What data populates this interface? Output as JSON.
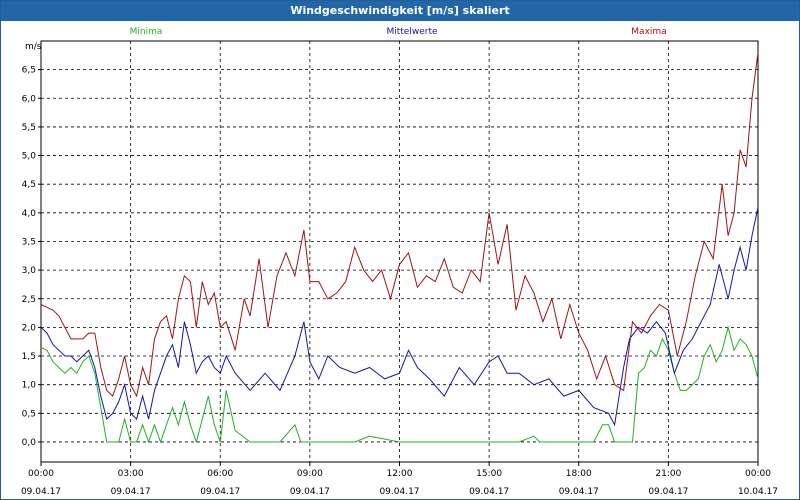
{
  "window": {
    "title": "Windgeschwindigkeit [m/s] skaliert"
  },
  "colors": {
    "min": "#22b022",
    "avg": "#1414b4",
    "max": "#a01414",
    "grid": "#000000",
    "title_bar": "#2266a8"
  },
  "chart_data": {
    "type": "line",
    "ylabel": "m/s",
    "ylim": [
      -0.35,
      7.0
    ],
    "yticks": [
      "0,0",
      "0,5",
      "1,0",
      "1,5",
      "2,0",
      "2,5",
      "3,0",
      "3,5",
      "4,0",
      "4,5",
      "5,0",
      "5,5",
      "6,0",
      "6,5"
    ],
    "yticks_values": [
      0,
      0.5,
      1,
      1.5,
      2,
      2.5,
      3,
      3.5,
      4,
      4.5,
      5,
      5.5,
      6,
      6.5
    ],
    "xlim": [
      0,
      24
    ],
    "xticks": [
      {
        "time": "00:00",
        "date": "09.04.17"
      },
      {
        "time": "03:00",
        "date": "09.04.17"
      },
      {
        "time": "06:00",
        "date": "09.04.17"
      },
      {
        "time": "09:00",
        "date": "09.04.17"
      },
      {
        "time": "12:00",
        "date": "09.04.17"
      },
      {
        "time": "15:00",
        "date": "09.04.17"
      },
      {
        "time": "18:00",
        "date": "09.04.17"
      },
      {
        "time": "21:00",
        "date": "09.04.17"
      },
      {
        "time": "00:00",
        "date": "10.04.17"
      }
    ],
    "grid": true,
    "series": [
      {
        "name": "Minima",
        "color": "#22b022",
        "x": [
          0,
          0.2,
          0.4,
          0.6,
          0.8,
          1.0,
          1.2,
          1.4,
          1.6,
          1.8,
          2.0,
          2.2,
          2.4,
          2.6,
          2.8,
          3.0,
          3.2,
          3.4,
          3.6,
          3.8,
          4.0,
          4.2,
          4.4,
          4.6,
          4.8,
          5.0,
          5.2,
          5.4,
          5.6,
          5.8,
          6.0,
          6.2,
          6.5,
          7.0,
          8.0,
          8.5,
          8.7,
          9.0,
          9.5,
          10.0,
          10.5,
          11.0,
          12.0,
          13.0,
          14.0,
          15.0,
          16.0,
          16.5,
          16.7,
          17.0,
          18.0,
          18.5,
          18.8,
          19.0,
          19.2,
          19.4,
          19.6,
          19.8,
          20.0,
          20.2,
          20.4,
          20.6,
          20.8,
          21.0,
          21.2,
          21.4,
          21.6,
          21.8,
          22.0,
          22.2,
          22.4,
          22.6,
          22.8,
          23.0,
          23.2,
          23.4,
          23.6,
          23.8,
          24.0
        ],
        "y": [
          1.65,
          1.6,
          1.4,
          1.3,
          1.2,
          1.3,
          1.2,
          1.4,
          1.5,
          1.2,
          0.6,
          0.0,
          0.0,
          0.0,
          0.4,
          0.0,
          0.0,
          0.3,
          0.0,
          0.3,
          0.0,
          0.3,
          0.6,
          0.3,
          0.7,
          0.3,
          0.0,
          0.4,
          0.8,
          0.3,
          0.0,
          0.9,
          0.2,
          0.0,
          0.0,
          0.3,
          0.0,
          0.0,
          0.0,
          0.0,
          0.0,
          0.1,
          0.0,
          0.0,
          0.0,
          0.0,
          0.0,
          0.1,
          0.0,
          0.0,
          0.0,
          0.0,
          0.3,
          0.3,
          0.0,
          0.0,
          0.0,
          0.0,
          1.2,
          1.3,
          1.6,
          1.5,
          1.8,
          1.6,
          1.2,
          0.9,
          0.9,
          1.0,
          1.1,
          1.5,
          1.7,
          1.4,
          1.6,
          2.0,
          1.6,
          1.8,
          1.7,
          1.5,
          1.1
        ]
      },
      {
        "name": "Mittelwerte",
        "color": "#1414b4",
        "x": [
          0,
          0.2,
          0.4,
          0.6,
          0.8,
          1.0,
          1.2,
          1.4,
          1.6,
          1.8,
          2.0,
          2.2,
          2.4,
          2.6,
          2.8,
          3.0,
          3.2,
          3.4,
          3.6,
          3.8,
          4.0,
          4.2,
          4.4,
          4.6,
          4.8,
          5.0,
          5.2,
          5.4,
          5.6,
          5.8,
          6.0,
          6.2,
          6.5,
          7.0,
          7.5,
          8.0,
          8.5,
          8.8,
          9.0,
          9.3,
          9.6,
          10.0,
          10.5,
          11.0,
          11.5,
          12.0,
          12.3,
          12.6,
          13.0,
          13.5,
          14.0,
          14.5,
          15.0,
          15.3,
          15.6,
          16.0,
          16.5,
          17.0,
          17.5,
          18.0,
          18.5,
          19.0,
          19.2,
          19.5,
          19.7,
          20.0,
          20.3,
          20.6,
          20.9,
          21.2,
          21.5,
          21.8,
          22.1,
          22.4,
          22.7,
          23.0,
          23.2,
          23.4,
          23.6,
          23.8,
          24.0
        ],
        "y": [
          2.0,
          1.9,
          1.7,
          1.6,
          1.5,
          1.5,
          1.4,
          1.5,
          1.6,
          1.3,
          0.8,
          0.4,
          0.5,
          0.7,
          1.0,
          0.5,
          0.4,
          0.8,
          0.4,
          0.9,
          1.2,
          1.5,
          1.7,
          1.3,
          2.1,
          1.7,
          1.2,
          1.4,
          1.5,
          1.3,
          1.2,
          1.5,
          1.2,
          0.9,
          1.2,
          0.9,
          1.5,
          2.1,
          1.4,
          1.1,
          1.5,
          1.3,
          1.2,
          1.3,
          1.1,
          1.2,
          1.6,
          1.3,
          1.1,
          0.8,
          1.3,
          1.0,
          1.4,
          1.5,
          1.2,
          1.2,
          1.0,
          1.1,
          0.8,
          0.9,
          0.6,
          0.5,
          0.3,
          1.3,
          1.8,
          2.0,
          1.9,
          2.1,
          1.9,
          1.2,
          1.6,
          1.8,
          2.1,
          2.4,
          3.1,
          2.5,
          3.0,
          3.4,
          3.0,
          3.6,
          4.1
        ]
      },
      {
        "name": "Maxima",
        "color": "#a01414",
        "x": [
          0,
          0.2,
          0.4,
          0.6,
          0.8,
          1.0,
          1.2,
          1.4,
          1.6,
          1.8,
          2.0,
          2.2,
          2.4,
          2.6,
          2.8,
          3.0,
          3.2,
          3.4,
          3.6,
          3.8,
          4.0,
          4.2,
          4.4,
          4.6,
          4.8,
          5.0,
          5.2,
          5.4,
          5.6,
          5.8,
          6.0,
          6.2,
          6.5,
          6.8,
          7.0,
          7.3,
          7.6,
          7.9,
          8.2,
          8.5,
          8.8,
          9.0,
          9.3,
          9.6,
          9.9,
          10.2,
          10.5,
          10.8,
          11.1,
          11.4,
          11.7,
          12.0,
          12.3,
          12.6,
          12.9,
          13.2,
          13.5,
          13.8,
          14.1,
          14.4,
          14.7,
          15.0,
          15.3,
          15.6,
          15.9,
          16.2,
          16.5,
          16.8,
          17.1,
          17.4,
          17.7,
          18.0,
          18.3,
          18.6,
          18.9,
          19.2,
          19.5,
          19.8,
          20.1,
          20.4,
          20.7,
          21.0,
          21.3,
          21.6,
          21.9,
          22.2,
          22.5,
          22.8,
          23.0,
          23.2,
          23.4,
          23.6,
          23.8,
          24.0
        ],
        "y": [
          2.4,
          2.35,
          2.3,
          2.2,
          2.0,
          1.8,
          1.8,
          1.8,
          1.9,
          1.9,
          1.3,
          0.9,
          0.8,
          1.1,
          1.5,
          1.0,
          0.8,
          1.3,
          1.0,
          1.8,
          2.1,
          2.2,
          1.8,
          2.5,
          2.9,
          2.8,
          2.0,
          2.8,
          2.4,
          2.6,
          2.0,
          2.1,
          1.6,
          2.5,
          2.2,
          3.2,
          2.0,
          2.9,
          3.3,
          2.9,
          3.7,
          2.8,
          2.8,
          2.5,
          2.6,
          2.8,
          3.4,
          3.0,
          2.8,
          3.0,
          2.5,
          3.1,
          3.3,
          2.7,
          2.9,
          2.8,
          3.2,
          2.7,
          2.6,
          3.0,
          2.8,
          4.0,
          3.1,
          3.8,
          2.3,
          2.9,
          2.6,
          2.1,
          2.5,
          1.8,
          2.4,
          1.9,
          1.6,
          1.1,
          1.5,
          1.0,
          0.9,
          2.1,
          1.9,
          2.2,
          2.4,
          2.3,
          1.5,
          2.1,
          2.9,
          3.5,
          3.2,
          4.5,
          3.6,
          4.0,
          5.1,
          4.8,
          6.0,
          6.8
        ]
      }
    ]
  }
}
